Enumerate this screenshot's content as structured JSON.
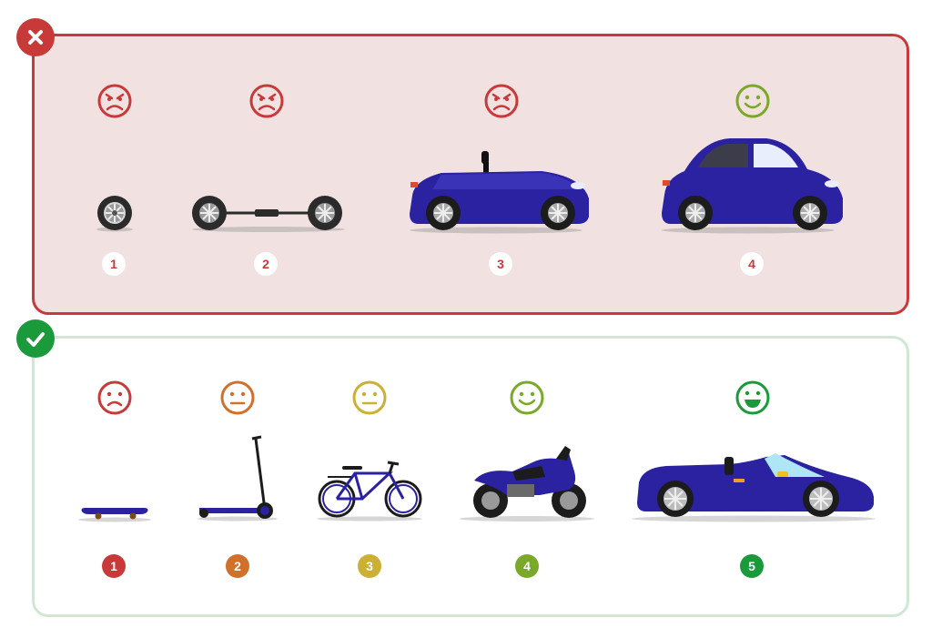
{
  "colors": {
    "bad_accent": "#c83a3a",
    "bad_bg": "#f2e1e1",
    "good_accent": "#1a9a3a",
    "good_border": "#cfe8d4",
    "vehicle_blue": "#2a22a0"
  },
  "bad_panel": {
    "badge_icon": "cross-icon",
    "steps": [
      {
        "number": "1",
        "mood": "angry",
        "face_color": "#c83a3a",
        "vehicle": "wheel"
      },
      {
        "number": "2",
        "mood": "angry",
        "face_color": "#c83a3a",
        "vehicle": "axle-with-wheels"
      },
      {
        "number": "3",
        "mood": "angry",
        "face_color": "#c83a3a",
        "vehicle": "car-body-no-roof"
      },
      {
        "number": "4",
        "mood": "happy",
        "face_color": "#7aa92a",
        "vehicle": "car"
      }
    ]
  },
  "good_panel": {
    "badge_icon": "check-icon",
    "steps": [
      {
        "number": "1",
        "mood": "sad",
        "face_color": "#c83a3a",
        "vehicle": "skateboard"
      },
      {
        "number": "2",
        "mood": "neutral",
        "face_color": "#d0702a",
        "vehicle": "scooter"
      },
      {
        "number": "3",
        "mood": "neutral",
        "face_color": "#cbb033",
        "vehicle": "bicycle"
      },
      {
        "number": "4",
        "mood": "happy",
        "face_color": "#7aa92a",
        "vehicle": "motorcycle"
      },
      {
        "number": "5",
        "mood": "very-happy",
        "face_color": "#1a9a3a",
        "vehicle": "sports-car"
      }
    ]
  }
}
